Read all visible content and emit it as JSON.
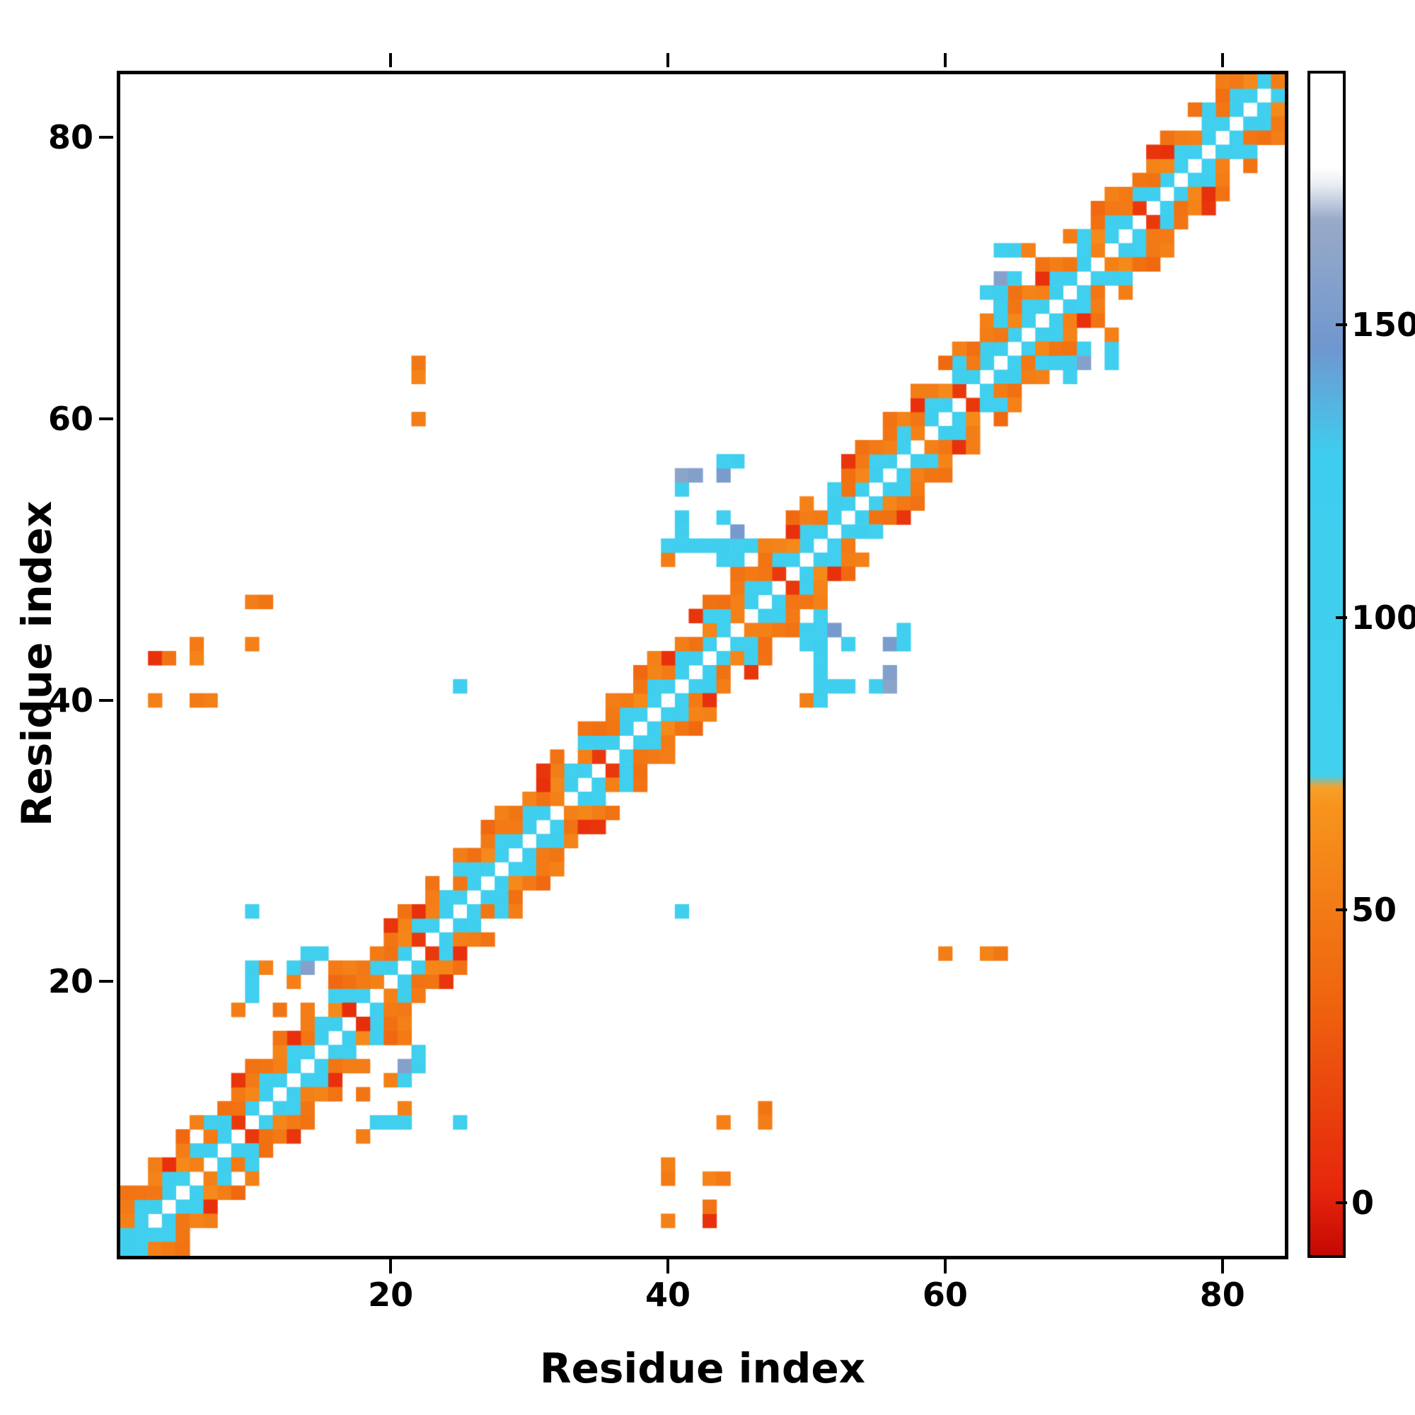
{
  "figure": {
    "title": ""
  },
  "chart_data": {
    "type": "heatmap",
    "title": "",
    "xlabel": "Residue index",
    "ylabel": "Residue index",
    "n_residues": 84,
    "x_ticks": [
      20,
      40,
      60,
      80
    ],
    "y_ticks": [
      20,
      40,
      60,
      80
    ],
    "grid": false,
    "legend": "colorbar-right",
    "colorbar": {
      "ticks": [
        0,
        50,
        100,
        150
      ],
      "vmin": -9,
      "vmax": 193,
      "color_stops": [
        [
          -9,
          "#c50803"
        ],
        [
          2,
          "#e6260b"
        ],
        [
          35,
          "#ef650f"
        ],
        [
          68,
          "#f7941d"
        ],
        [
          71,
          "#f7a02a"
        ],
        [
          73,
          "#41d0ee"
        ],
        [
          128,
          "#3fcdef"
        ],
        [
          146,
          "#6f97cf"
        ],
        [
          168,
          "#98aac8"
        ],
        [
          174,
          "#e9edf3"
        ],
        [
          177,
          "#ffffff"
        ],
        [
          193,
          "#ffffff"
        ]
      ]
    },
    "symmetric": true,
    "band_offsets": {
      "1": [
        100,
        96,
        103,
        91,
        99,
        55,
        101,
        94,
        12,
        98,
        104,
        88,
        95
      ],
      "2": [
        54,
        100,
        47,
        97,
        60,
        95,
        50,
        102,
        44,
        58,
        96
      ],
      "3": [
        50,
        46,
        57,
        8,
        52,
        null,
        94,
        43,
        49
      ],
      "4": [
        45,
        null,
        52,
        null,
        38,
        55,
        null,
        null,
        10,
        44,
        null
      ]
    },
    "cells_upper_triangle": [
      [
        9,
        18,
        52
      ],
      [
        10,
        19,
        100
      ],
      [
        10,
        20,
        96
      ],
      [
        10,
        21,
        92
      ],
      [
        11,
        21,
        55
      ],
      [
        12,
        18,
        46
      ],
      [
        13,
        20,
        54
      ],
      [
        13,
        21,
        100
      ],
      [
        14,
        21,
        158
      ],
      [
        14,
        22,
        96
      ],
      [
        15,
        22,
        98
      ],
      [
        16,
        21,
        50
      ],
      [
        17,
        18,
        6
      ],
      [
        10,
        25,
        95
      ],
      [
        40,
        50,
        52
      ],
      [
        44,
        50,
        100
      ],
      [
        45,
        50,
        97
      ],
      [
        40,
        51,
        99
      ],
      [
        41,
        51,
        96
      ],
      [
        42,
        51,
        101
      ],
      [
        43,
        51,
        97
      ],
      [
        44,
        51,
        102
      ],
      [
        45,
        51,
        95
      ],
      [
        46,
        51,
        100
      ],
      [
        47,
        51,
        55
      ],
      [
        41,
        52,
        97
      ],
      [
        45,
        52,
        150
      ],
      [
        41,
        53,
        102
      ],
      [
        44,
        53,
        96
      ],
      [
        41,
        55,
        94
      ],
      [
        41,
        56,
        161
      ],
      [
        42,
        56,
        156
      ],
      [
        44,
        56,
        152
      ],
      [
        44,
        57,
        99
      ],
      [
        45,
        57,
        95
      ],
      [
        63,
        66,
        52
      ],
      [
        64,
        66,
        48
      ],
      [
        63,
        67,
        55
      ],
      [
        64,
        67,
        100
      ],
      [
        64,
        68,
        97
      ],
      [
        63,
        69,
        95
      ],
      [
        64,
        69,
        101
      ],
      [
        64,
        70,
        158
      ],
      [
        65,
        70,
        99
      ],
      [
        64,
        72,
        100
      ],
      [
        65,
        72,
        96
      ],
      [
        66,
        72,
        54
      ],
      [
        22,
        60,
        52
      ],
      [
        22,
        63,
        56
      ],
      [
        22,
        64,
        48
      ],
      [
        25,
        41,
        98
      ],
      [
        3,
        40,
        55
      ],
      [
        6,
        40,
        50
      ],
      [
        7,
        40,
        53
      ],
      [
        3,
        43,
        8
      ],
      [
        4,
        43,
        45
      ],
      [
        6,
        43,
        57
      ],
      [
        6,
        44,
        50
      ],
      [
        10,
        44,
        54
      ],
      [
        10,
        47,
        52
      ],
      [
        11,
        47,
        46
      ]
    ],
    "diagonal_cells": [
      [
        1,
        98
      ],
      [
        2,
        94
      ],
      [
        84,
        52
      ]
    ]
  }
}
